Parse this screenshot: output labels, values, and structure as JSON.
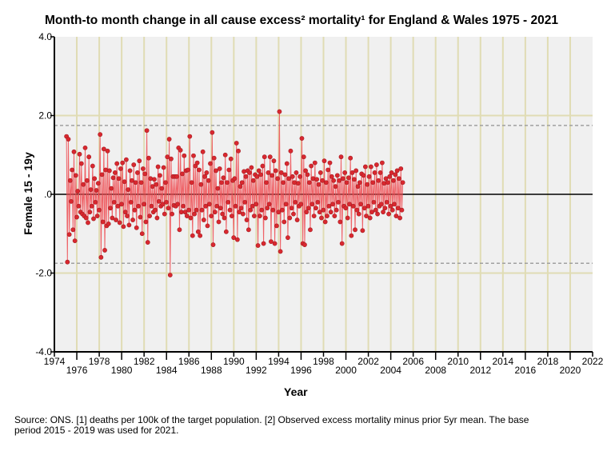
{
  "chart_data": {
    "type": "line",
    "title": "Month-to month change in all cause excess² mortality¹  for England & Wales 1975 - 2021",
    "xlabel": "Year",
    "ylabel": "Female 15 - 19y",
    "xlim": [
      1974,
      2022
    ],
    "ylim": [
      -4,
      4
    ],
    "x_ticks": [
      "1974",
      "1976",
      "1978",
      "1980",
      "1982",
      "1984",
      "1986",
      "1988",
      "1990",
      "1992",
      "1994",
      "1996",
      "1998",
      "2000",
      "2002",
      "2004",
      "2006",
      "2008",
      "2010",
      "2012",
      "2014",
      "2016",
      "2018",
      "2020",
      "2022"
    ],
    "y_ticks": [
      "-4.0",
      "-2.0",
      ".0",
      "2.0",
      "4.0"
    ],
    "reference_lines": {
      "zero": 0,
      "upper_dashed": 1.75,
      "lower_dashed": -1.75,
      "grid": [
        2,
        -2
      ]
    },
    "grid": true,
    "series": [
      {
        "name": "Female 15 - 19y",
        "start_year": 1975.08,
        "step_years": 0.0833,
        "color": "#d9282f",
        "values": [
          1.47,
          -1.72,
          1.4,
          -1.02,
          0.35,
          -0.18,
          0.62,
          -0.9,
          1.08,
          -1.18,
          0.48,
          -0.58,
          0.08,
          -0.3,
          1.02,
          -0.45,
          0.78,
          -0.5,
          0.25,
          -0.55,
          1.18,
          -0.6,
          0.35,
          -0.72,
          0.95,
          -0.45,
          0.12,
          -0.3,
          0.72,
          -0.62,
          0.4,
          -0.2,
          0.1,
          -0.55,
          0.28,
          -0.4,
          1.52,
          -1.6,
          0.5,
          -0.7,
          1.15,
          -1.42,
          0.62,
          -0.8,
          1.1,
          -0.75,
          0.6,
          -0.35,
          0.15,
          -0.6,
          0.42,
          -0.2,
          0.55,
          -0.65,
          0.78,
          -0.3,
          0.4,
          -0.72,
          0.65,
          -0.25,
          0.8,
          -0.82,
          0.32,
          -0.45,
          0.88,
          -0.55,
          0.12,
          -0.78,
          0.6,
          -0.2,
          0.35,
          -0.65,
          0.75,
          -0.4,
          0.3,
          -0.85,
          0.55,
          -0.3,
          0.85,
          -0.58,
          0.3,
          -1.0,
          0.65,
          -0.25,
          0.52,
          -0.7,
          1.62,
          -1.22,
          0.92,
          -0.55,
          0.4,
          -0.3,
          0.2,
          -0.45,
          0.38,
          -0.4,
          0.25,
          -0.6,
          0.7,
          -0.18,
          0.48,
          -0.3,
          0.15,
          -0.25,
          0.68,
          -0.5,
          0.3,
          -0.2,
          0.95,
          -0.35,
          1.4,
          -2.05,
          0.9,
          -0.5,
          0.45,
          -0.28,
          0.45,
          -0.3,
          0.45,
          -0.25,
          1.18,
          -0.9,
          1.12,
          -0.45,
          0.52,
          -0.3,
          0.98,
          -0.45,
          0.6,
          -0.55,
          0.62,
          -0.4,
          1.47,
          -0.6,
          0.3,
          -1.05,
          0.98,
          -0.5,
          0.72,
          -0.4,
          0.8,
          -0.95,
          0.62,
          -1.05,
          0.25,
          -0.4,
          1.08,
          -0.65,
          0.45,
          -0.3,
          0.55,
          -0.8,
          0.35,
          -0.25,
          0.78,
          -0.55,
          1.57,
          -1.28,
          0.92,
          -0.45,
          0.6,
          -0.3,
          0.15,
          -0.7,
          0.65,
          -0.35,
          0.3,
          -0.5,
          0.42,
          -0.6,
          1.0,
          -0.95,
          0.3,
          -0.2,
          0.62,
          -0.4,
          0.9,
          -0.55,
          0.35,
          -1.1,
          0.4,
          -0.3,
          1.3,
          -1.15,
          1.1,
          -0.45,
          0.2,
          -0.35,
          0.3,
          -0.5,
          0.58,
          -0.2,
          0.45,
          -0.65,
          0.6,
          -0.9,
          0.55,
          -0.4,
          0.68,
          -0.3,
          0.35,
          -0.55,
          0.5,
          -0.25,
          0.45,
          -1.3,
          0.6,
          -0.55,
          0.5,
          -0.4,
          0.72,
          -1.25,
          0.95,
          -0.6,
          0.3,
          -0.35,
          0.55,
          -0.25,
          0.95,
          -1.2,
          0.48,
          -0.4,
          0.85,
          -1.25,
          0.6,
          -0.8,
          0.4,
          -0.45,
          2.1,
          -1.45,
          0.55,
          -0.4,
          0.3,
          -0.7,
          0.5,
          -0.25,
          0.78,
          -1.1,
          0.4,
          -0.6,
          1.1,
          -0.35,
          0.45,
          -0.5,
          0.3,
          -0.2,
          0.55,
          -0.65,
          0.28,
          -0.3,
          0.45,
          -0.25,
          1.42,
          -1.25,
          0.95,
          -1.28,
          0.6,
          -0.45,
          0.5,
          -0.35,
          0.3,
          -0.9,
          0.72,
          -0.25,
          0.4,
          -0.55,
          0.8,
          -0.35,
          0.38,
          -0.2,
          0.25,
          -0.45,
          0.55,
          -0.6,
          0.35,
          -0.4,
          0.85,
          -0.7,
          0.3,
          -0.55,
          0.62,
          -0.3,
          0.8,
          -0.45,
          0.45,
          -0.25,
          0.35,
          -0.55,
          0.2,
          -0.4,
          0.48,
          -0.2,
          0.35,
          -0.7,
          0.95,
          -1.25,
          0.4,
          -0.3,
          0.55,
          -0.35,
          0.3,
          -0.6,
          0.42,
          -0.25,
          0.92,
          -1.05,
          0.55,
          -0.3,
          0.38,
          -0.9,
          0.6,
          -0.4,
          0.2,
          -0.5,
          0.3,
          -0.25,
          0.52,
          -0.92,
          0.48,
          -0.35,
          0.7,
          -0.55,
          0.25,
          -0.3,
          0.45,
          -0.6,
          0.7,
          -0.45,
          0.3,
          -0.2,
          0.55,
          -0.4,
          0.75,
          -0.5,
          0.35,
          -0.3,
          0.55,
          -0.25,
          0.8,
          -0.45,
          0.28,
          -0.35,
          0.4,
          -0.2,
          0.3,
          -0.5,
          0.45,
          -0.3,
          0.55,
          -0.4,
          0.35,
          -0.25,
          0.5,
          -0.55,
          0.6,
          -0.35,
          0.4,
          -0.6,
          0.65,
          -0.4,
          0.3
        ]
      }
    ]
  },
  "footnote": {
    "line1": "Source: ONS. [1] deaths per 100k of the target population. [2] Observed excess mortality minus prior 5yr mean. The base",
    "line2": "period 2015 - 2019 was used for 2021."
  }
}
